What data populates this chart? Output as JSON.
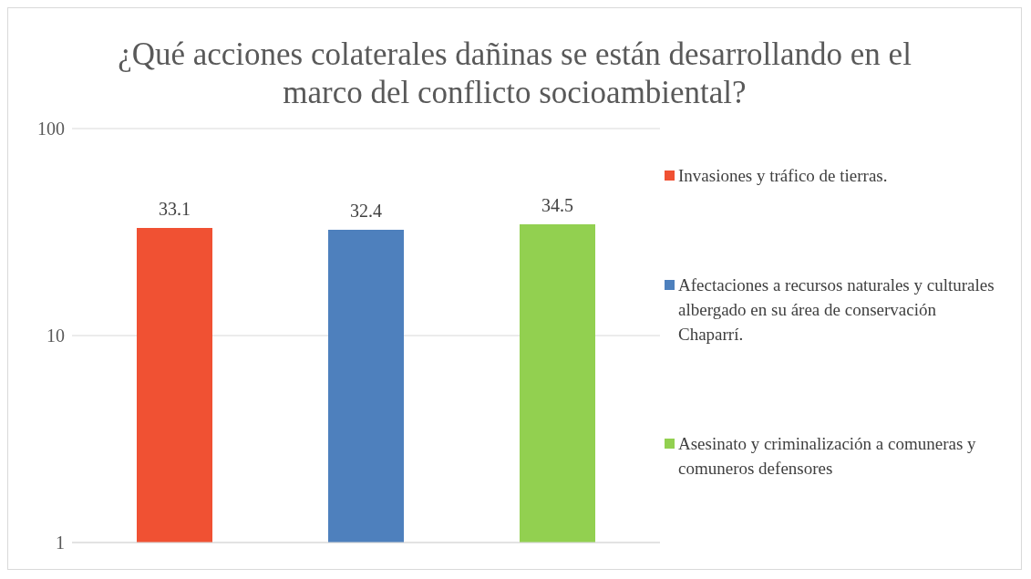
{
  "chart_data": {
    "type": "bar",
    "title": "¿Qué acciones colaterales dañinas se están desarrollando en el marco del conflicto socioambiental?",
    "categories": [
      null
    ],
    "series": [
      {
        "name": "Invasiones y tráfico de tierras.",
        "color": "#f05133",
        "values": [
          33.1
        ]
      },
      {
        "name": "Afectaciones a recursos naturales y culturales albergado en su área de conservación Chaparrí.",
        "color": "#4e80bd",
        "values": [
          32.4
        ]
      },
      {
        "name": "Asesinato y criminalización a comuneras y comuneros defensores",
        "color": "#92d050",
        "values": [
          34.5
        ]
      }
    ],
    "log": true,
    "ylim": [
      1,
      100
    ],
    "yticks": [
      1,
      10,
      100
    ],
    "grid": "y",
    "legend": "right",
    "data_labels": true
  }
}
